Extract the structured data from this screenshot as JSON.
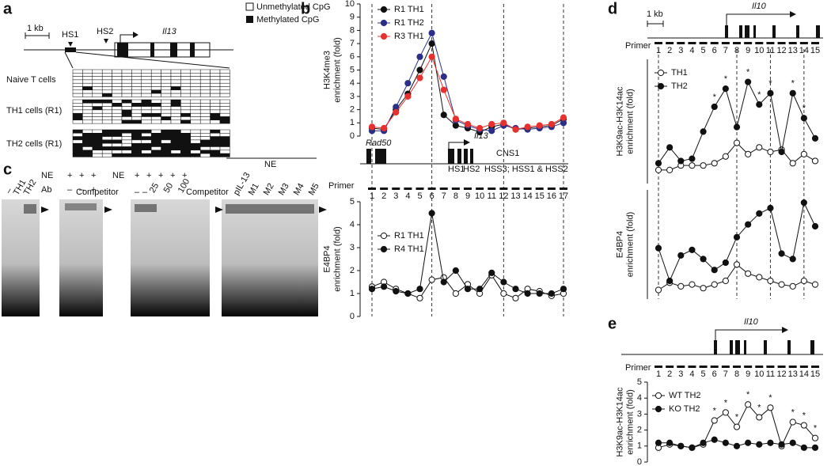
{
  "panel_labels": [
    "a",
    "b",
    "c",
    "d",
    "e"
  ],
  "panel_a": {
    "scale": "1 kb",
    "hs1": "HS1",
    "hs2": "HS2",
    "gene": "Il13",
    "legend": [
      "Unmethylated CpG",
      "Methylated CpG"
    ],
    "rows": [
      "Naive T cells",
      "TH1 cells (R1)",
      "TH2 cells (R1)"
    ]
  },
  "panel_b_map": {
    "genes": [
      "Rad50",
      "Il13"
    ],
    "elements": [
      "CNS1",
      "HS1",
      "HS2",
      "HSS3; HSS1 & HSS2"
    ],
    "primer": "Primer"
  },
  "panel_c": {
    "lanes": [
      "–",
      "TH1",
      "TH2"
    ],
    "ne": "NE",
    "ab": "Ab",
    "ne_signs": [
      "+",
      "+",
      "+"
    ],
    "ab_signs": [
      "–",
      "–",
      "+"
    ],
    "ne2": "NE",
    "ne2_signs": [
      "+",
      "+",
      "+",
      "+",
      "+"
    ],
    "competitor": "Competitor",
    "competitor_amounts": [
      "–",
      "–",
      "25",
      "50",
      "100"
    ],
    "ne3": "NE",
    "competitor2": "Competitor",
    "competitors": [
      "pIL-13",
      "M1",
      "M2",
      "M3",
      "M4",
      "M5"
    ]
  },
  "panel_d_map": {
    "scale": "1 kb",
    "gene": "Il10",
    "primer": "Primer"
  },
  "panel_e_map": {
    "gene": "Il10",
    "primer": "Primer"
  },
  "chart_data": [
    {
      "type": "line",
      "y_label": "H3K4me3 enrichment (fold)",
      "ylim": [
        0,
        10
      ],
      "yticks": [
        0,
        1,
        2,
        3,
        4,
        5,
        6,
        7,
        8,
        9,
        10
      ],
      "series": [
        {
          "name": "R1 TH1",
          "color": "#111111",
          "marker_fill": "#111111",
          "values": [
            0.6,
            0.5,
            2.0,
            3.2,
            5.0,
            7.0,
            1.6,
            0.8,
            0.6,
            0.3,
            0.7,
            0.9,
            0.5,
            0.6,
            0.7,
            0.8,
            1.3
          ]
        },
        {
          "name": "R1 TH2",
          "color": "#2b2f86",
          "marker_fill": "#2b2f86",
          "values": [
            0.4,
            0.4,
            2.2,
            4.0,
            6.0,
            7.8,
            4.5,
            1.2,
            0.8,
            0.5,
            0.4,
            0.8,
            0.6,
            0.5,
            0.6,
            0.7,
            1.0
          ]
        },
        {
          "name": "R3 TH1",
          "color": "#e8302f",
          "marker_fill": "#e8302f",
          "values": [
            0.7,
            0.6,
            1.8,
            3.0,
            4.4,
            6.0,
            3.5,
            1.3,
            0.9,
            0.6,
            0.9,
            1.0,
            0.5,
            0.7,
            0.8,
            0.9,
            1.4
          ]
        }
      ]
    },
    {
      "type": "line",
      "y_label": "E4BP4 enrichment (fold)",
      "categories": [
        1,
        2,
        3,
        4,
        5,
        6,
        7,
        8,
        9,
        10,
        11,
        12,
        13,
        14,
        15,
        16,
        17
      ],
      "ylim": [
        0,
        5
      ],
      "yticks": [
        0,
        1,
        2,
        3,
        4,
        5
      ],
      "series": [
        {
          "name": "R1 TH1",
          "color": "#111111",
          "marker_fill": "#ffffff",
          "values": [
            1.3,
            1.5,
            1.2,
            1.0,
            0.8,
            1.6,
            1.7,
            1.0,
            1.4,
            1.0,
            1.8,
            1.0,
            0.8,
            1.2,
            1.1,
            0.9,
            1.0
          ]
        },
        {
          "name": "R4 TH1",
          "color": "#111111",
          "marker_fill": "#111111",
          "values": [
            1.2,
            1.3,
            1.1,
            1.0,
            1.2,
            4.5,
            1.5,
            2.0,
            1.2,
            1.2,
            1.9,
            1.5,
            1.2,
            1.0,
            1.0,
            1.0,
            1.2
          ]
        }
      ]
    },
    {
      "type": "line",
      "y_label": "H3K9ac-H3K14ac enrichment (fold)",
      "categories": [
        1,
        2,
        3,
        4,
        5,
        6,
        7,
        8,
        9,
        10,
        11,
        12,
        13,
        14,
        15
      ],
      "ylim": [
        0,
        5.5
      ],
      "series": [
        {
          "name": "TH1",
          "color": "#111111",
          "marker_fill": "#ffffff",
          "values": [
            0.6,
            0.6,
            0.8,
            0.8,
            0.8,
            0.9,
            1.2,
            1.8,
            1.3,
            1.6,
            1.4,
            1.5,
            0.9,
            1.3,
            1.0
          ]
        },
        {
          "name": "TH2",
          "color": "#111111",
          "marker_fill": "#111111",
          "values": [
            0.9,
            1.6,
            1.0,
            1.1,
            2.3,
            3.4,
            4.2,
            2.5,
            4.5,
            3.5,
            4.0,
            1.4,
            4.0,
            2.9,
            2.0
          ]
        }
      ],
      "annotations": [
        {
          "text": "*",
          "at": 5
        },
        {
          "text": "*",
          "at": 6
        },
        {
          "text": "*",
          "at": 8
        },
        {
          "text": "*",
          "at": 9
        },
        {
          "text": "*",
          "at": 10
        },
        {
          "text": "*",
          "at": 12
        },
        {
          "text": "*",
          "at": 13
        }
      ]
    },
    {
      "type": "line",
      "y_label": "E4BP4 enrichment (fold)",
      "ylim": [
        0,
        6
      ],
      "series": [
        {
          "name": "TH1",
          "color": "#111111",
          "marker_fill": "#ffffff",
          "values": [
            0.5,
            0.9,
            0.7,
            0.8,
            0.6,
            0.8,
            1.0,
            1.9,
            1.4,
            1.2,
            1.0,
            0.8,
            0.7,
            1.0,
            0.8
          ]
        },
        {
          "name": "TH2",
          "color": "#111111",
          "marker_fill": "#111111",
          "values": [
            2.8,
            1.0,
            2.4,
            2.7,
            2.2,
            1.6,
            2.0,
            3.4,
            4.1,
            4.7,
            5.0,
            2.5,
            2.2,
            5.3,
            4.0
          ]
        }
      ]
    },
    {
      "type": "line",
      "y_label": "H3K9ac-H3K14ac enrichment (fold)",
      "categories": [
        1,
        2,
        3,
        4,
        5,
        6,
        7,
        8,
        9,
        10,
        11,
        12,
        13,
        14,
        15
      ],
      "ylim": [
        0,
        5
      ],
      "yticks": [
        0,
        1,
        2,
        3,
        4,
        5
      ],
      "series": [
        {
          "name": "WT TH2",
          "color": "#111111",
          "marker_fill": "#ffffff",
          "values": [
            0.9,
            1.1,
            1.0,
            0.9,
            1.1,
            2.6,
            3.1,
            2.2,
            3.6,
            2.8,
            3.4,
            1.0,
            2.5,
            2.3,
            1.5
          ]
        },
        {
          "name": "KO TH2",
          "color": "#111111",
          "marker_fill": "#111111",
          "values": [
            1.2,
            1.2,
            1.0,
            0.9,
            1.2,
            1.4,
            1.2,
            1.0,
            1.2,
            1.1,
            1.2,
            1.1,
            1.2,
            0.9,
            0.9
          ]
        }
      ],
      "annotations": [
        {
          "text": "*",
          "at": 5
        },
        {
          "text": "*",
          "at": 6
        },
        {
          "text": "*",
          "at": 7
        },
        {
          "text": "*",
          "at": 8
        },
        {
          "text": "*",
          "at": 9
        },
        {
          "text": "*",
          "at": 10
        },
        {
          "text": "*",
          "at": 12
        },
        {
          "text": "*",
          "at": 13
        },
        {
          "text": "*",
          "at": 14
        }
      ]
    }
  ]
}
